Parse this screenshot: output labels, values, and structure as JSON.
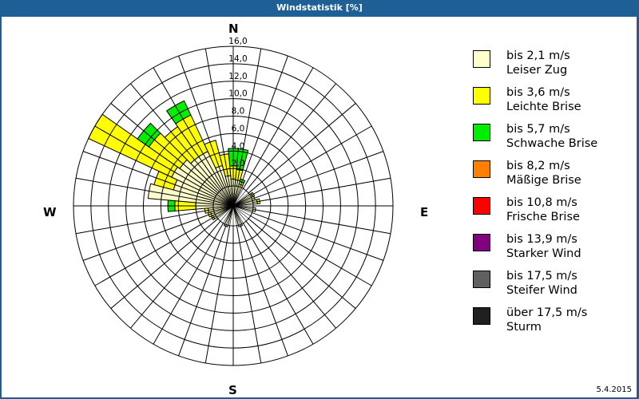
{
  "title": "Windstatistik [%]",
  "date": "5.4.2015",
  "compass": {
    "n": "N",
    "e": "E",
    "s": "S",
    "w": "W"
  },
  "legend": [
    {
      "speed": "bis 2,1 m/s",
      "name": "Leiser Zug",
      "color": "#ffffcc"
    },
    {
      "speed": "bis 3,6 m/s",
      "name": "Leichte Brise",
      "color": "#ffff00"
    },
    {
      "speed": "bis 5,7 m/s",
      "name": "Schwache Brise",
      "color": "#00ee00"
    },
    {
      "speed": "bis 8,2 m/s",
      "name": "Mäßige Brise",
      "color": "#ff8000"
    },
    {
      "speed": "bis 10,8 m/s",
      "name": "Frische Brise",
      "color": "#ff0000"
    },
    {
      "speed": "bis 13,9 m/s",
      "name": "Starker Wind",
      "color": "#800080"
    },
    {
      "speed": "bis 17,5 m/s",
      "name": "Steifer Wind",
      "color": "#606060"
    },
    {
      "speed": "über 17,5 m/s",
      "name": "Sturm",
      "color": "#202020"
    }
  ],
  "chart_data": {
    "type": "windrose",
    "title": "Windstatistik [%]",
    "radial_ticks": [
      "2,0",
      "4,0",
      "6,0",
      "8,0",
      "10,0",
      "12,0",
      "14,0",
      "16,0"
    ],
    "rmax": 16,
    "sector_width_deg": 10,
    "series_names": [
      "Leiser Zug",
      "Leichte Brise",
      "Schwache Brise"
    ],
    "sectors": [
      {
        "dir": 0,
        "values": [
          0.8,
          1.5,
          2.0
        ]
      },
      {
        "dir": 10,
        "values": [
          0.7,
          1.2,
          2.4
        ]
      },
      {
        "dir": 20,
        "values": [
          0.3,
          0.3,
          0.3
        ]
      },
      {
        "dir": 60,
        "values": [
          0.2,
          0.2,
          0
        ]
      },
      {
        "dir": 70,
        "values": [
          0.3,
          0,
          0
        ]
      },
      {
        "dir": 80,
        "values": [
          0.5,
          0.3,
          0
        ]
      },
      {
        "dir": 100,
        "values": [
          0.3,
          0,
          0
        ]
      },
      {
        "dir": 160,
        "values": [
          0.2,
          0,
          0
        ]
      },
      {
        "dir": 200,
        "values": [
          0.2,
          0,
          0
        ]
      },
      {
        "dir": 240,
        "values": [
          0.3,
          0.2,
          0
        ]
      },
      {
        "dir": 250,
        "values": [
          0.4,
          0.3,
          0
        ]
      },
      {
        "dir": 260,
        "values": [
          0.6,
          0.4,
          0
        ]
      },
      {
        "dir": 270,
        "values": [
          2.0,
          2.4,
          0.8
        ]
      },
      {
        "dir": 280,
        "values": [
          7.5,
          0,
          0
        ]
      },
      {
        "dir": 290,
        "values": [
          4.8,
          2.3,
          0
        ]
      },
      {
        "dir": 300,
        "values": [
          5.5,
          10.5,
          0
        ]
      },
      {
        "dir": 310,
        "values": [
          5.2,
          4.3,
          1.6
        ]
      },
      {
        "dir": 320,
        "values": [
          4.6,
          4.2,
          0
        ]
      },
      {
        "dir": 330,
        "values": [
          4.6,
          4.6,
          1.8
        ]
      },
      {
        "dir": 340,
        "values": [
          2.5,
          3.0,
          0
        ]
      },
      {
        "dir": 350,
        "values": [
          1.2,
          2.5,
          0
        ]
      }
    ]
  }
}
